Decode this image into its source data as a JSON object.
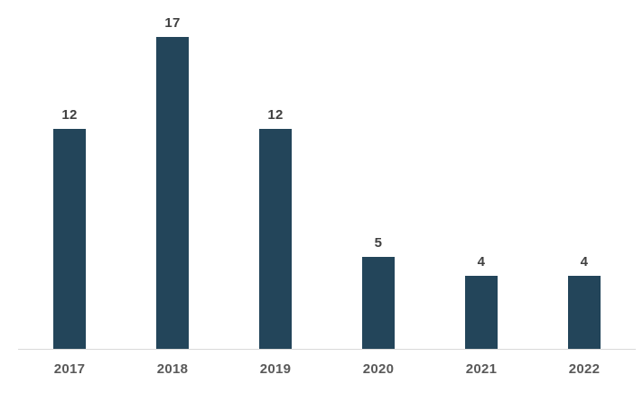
{
  "chart_data": {
    "type": "bar",
    "categories": [
      "2017",
      "2018",
      "2019",
      "2020",
      "2021",
      "2022"
    ],
    "values": [
      12,
      17,
      12,
      5,
      4,
      4
    ],
    "title": "",
    "xlabel": "",
    "ylabel": "",
    "ylim": [
      0,
      17
    ],
    "grid": false,
    "legend": false,
    "data_labels": true,
    "colors": {
      "bar": "#23455a",
      "data_label": "#404040",
      "axis_label": "#595959",
      "axis_line": "#d9d9d9",
      "background": "#ffffff"
    }
  }
}
